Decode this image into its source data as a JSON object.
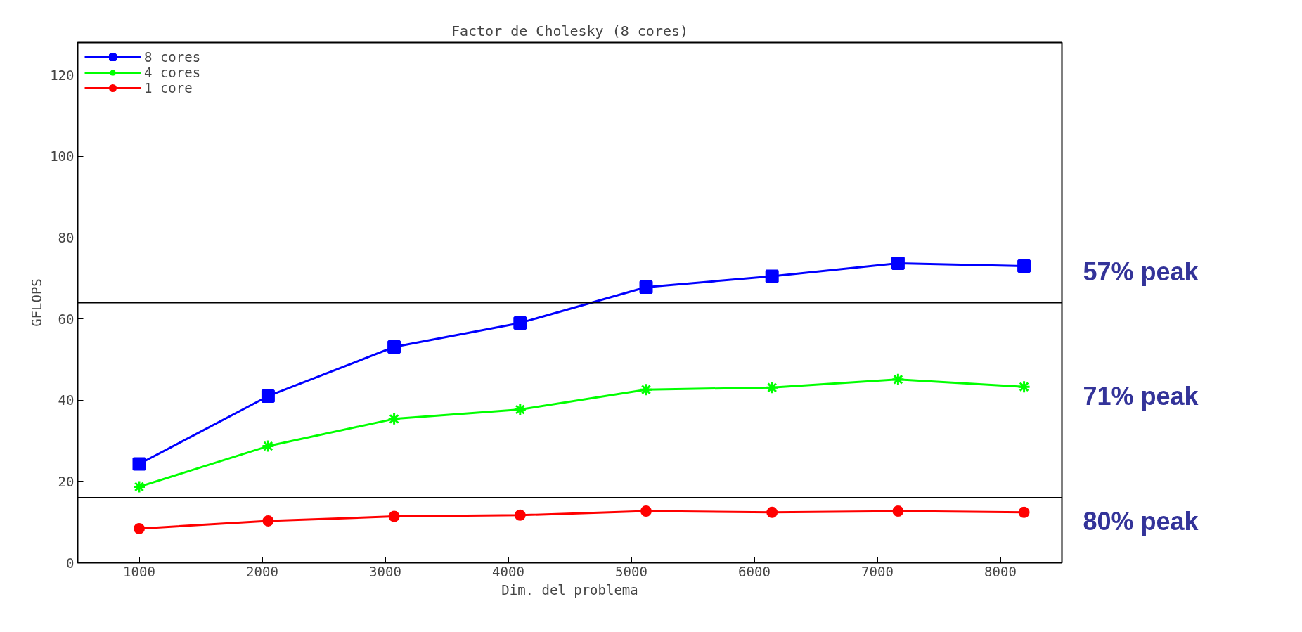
{
  "chart_data": {
    "type": "line",
    "title": "Factor de Cholesky (8 cores)",
    "xlabel": "Dim. del problema",
    "ylabel": "GFLOPS",
    "x": [
      1000,
      2048,
      3072,
      4096,
      5120,
      6144,
      7168,
      8192
    ],
    "series": [
      {
        "name": "8 cores",
        "color": "#0000ff",
        "marker": "square",
        "values": [
          24.3,
          41.0,
          53.1,
          59.0,
          67.8,
          70.5,
          73.7,
          73.0
        ]
      },
      {
        "name": "4 cores",
        "color": "#00ff00",
        "marker": "cross",
        "values": [
          18.7,
          28.7,
          35.4,
          37.7,
          42.6,
          43.1,
          45.1,
          43.3
        ]
      },
      {
        "name": "1 core",
        "color": "#ff0000",
        "marker": "circle",
        "values": [
          8.4,
          10.3,
          11.4,
          11.7,
          12.7,
          12.4,
          12.7,
          12.4
        ]
      }
    ],
    "xlim": [
      500,
      8500
    ],
    "xticks": [
      1000,
      2000,
      3000,
      4000,
      5000,
      6000,
      7000,
      8000
    ],
    "ylim": [
      0,
      128
    ],
    "yticks": [
      0,
      20,
      40,
      60,
      80,
      100,
      120
    ],
    "ref_lines": [
      {
        "axis": "y",
        "value": 64,
        "color": "#000000"
      },
      {
        "axis": "y",
        "value": 16,
        "color": "#000000"
      }
    ],
    "annotations": [
      "57% peak",
      "71% peak",
      "80% peak"
    ],
    "grid": false,
    "legend": "top left",
    "line_style": "solid"
  }
}
